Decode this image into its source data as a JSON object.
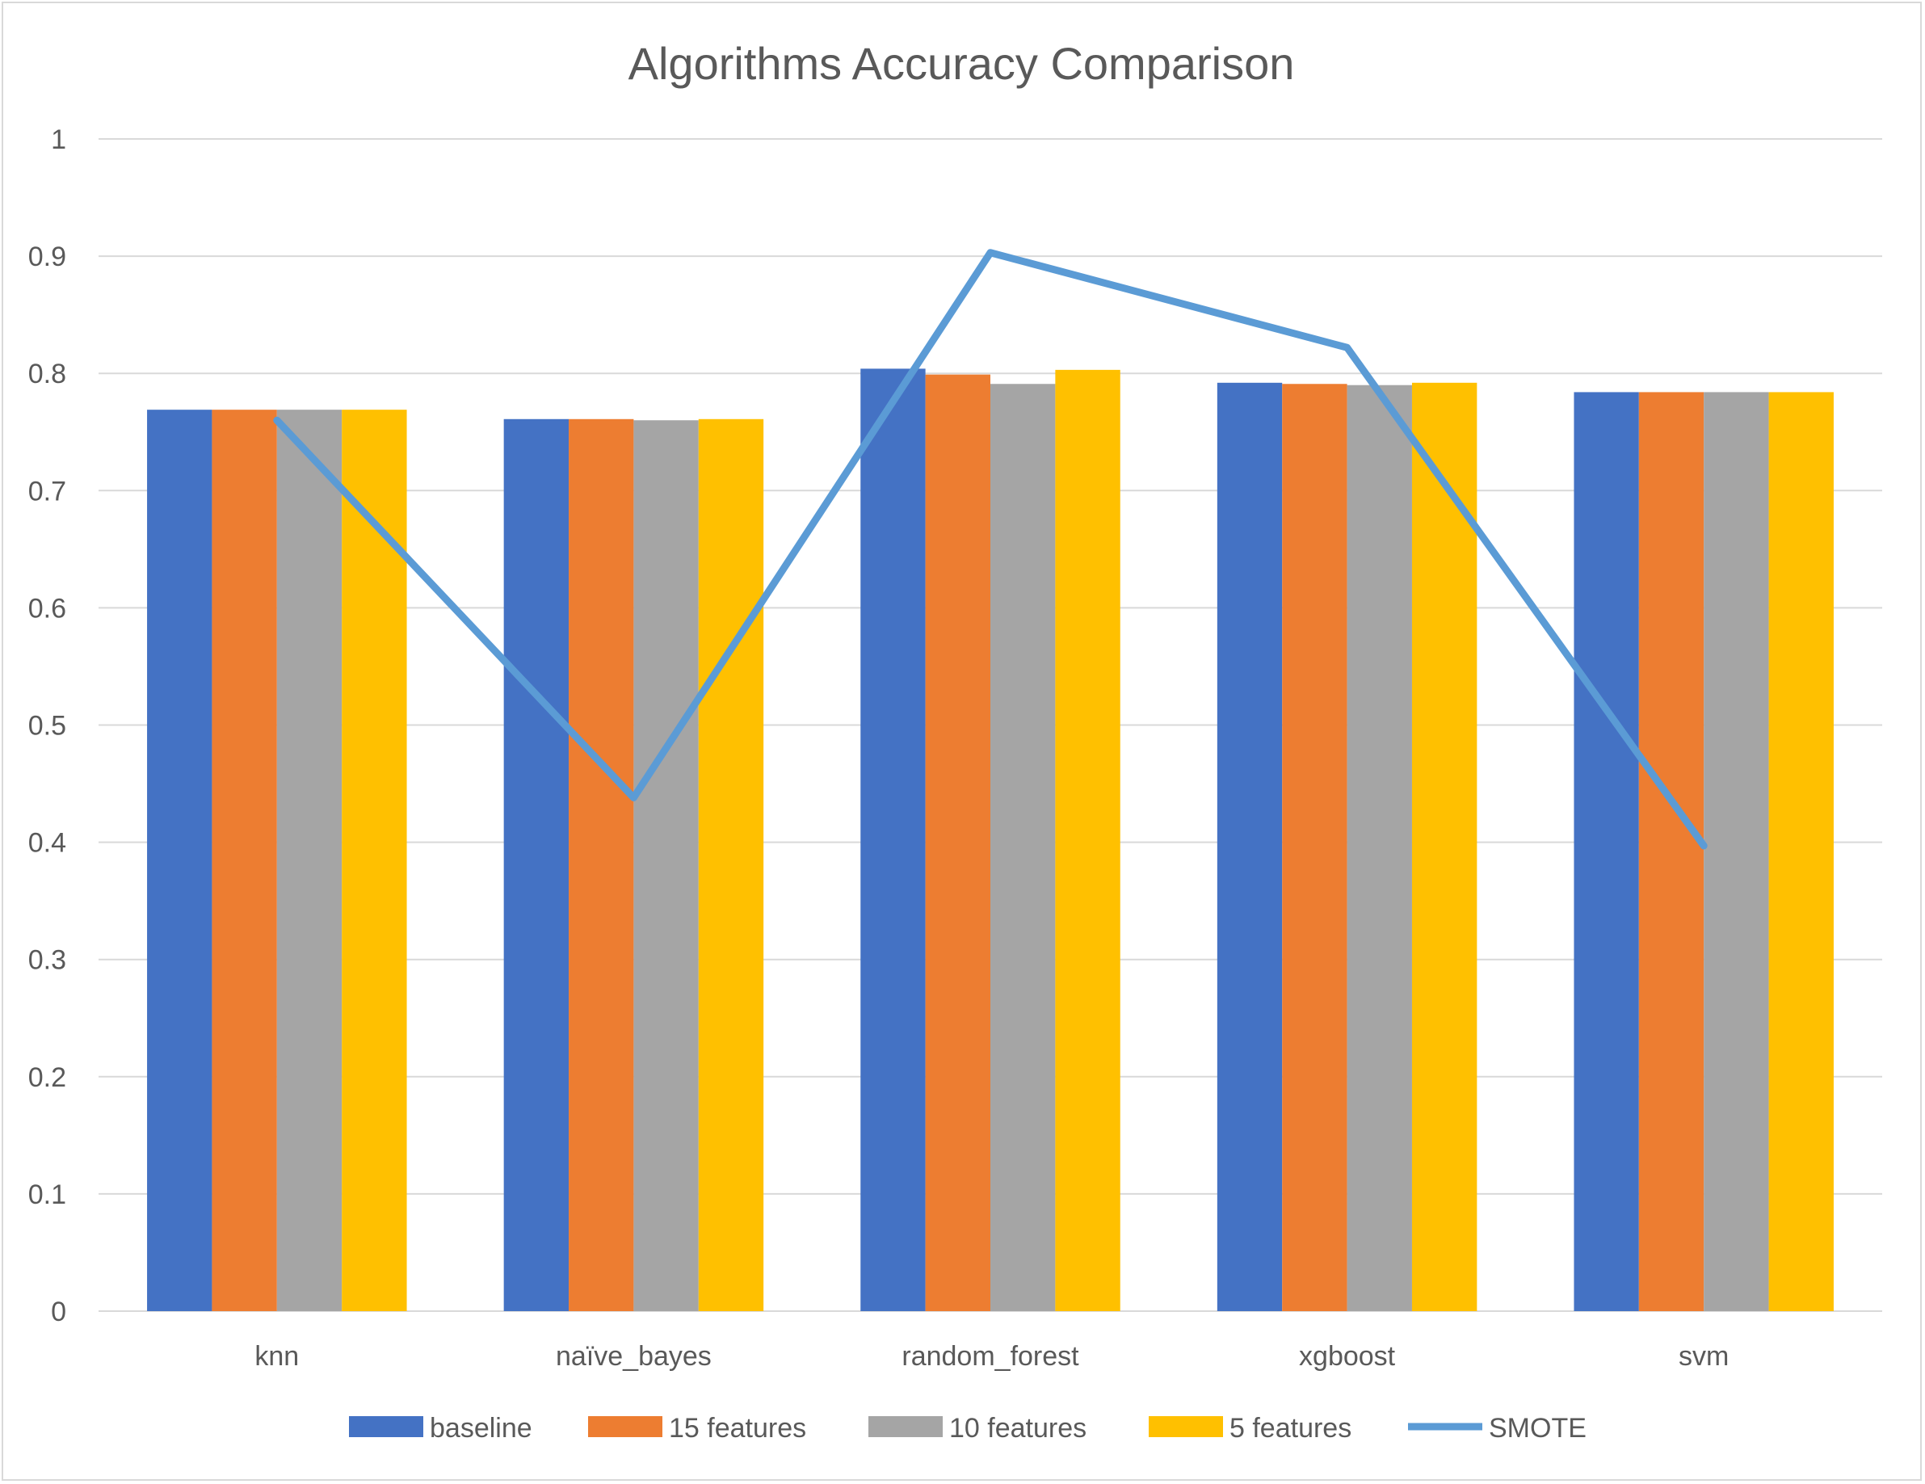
{
  "chart_data": {
    "type": "bar",
    "title": "Algorithms Accuracy Comparison",
    "xlabel": "",
    "ylabel": "",
    "ylim": [
      0,
      1
    ],
    "yticks": [
      "0",
      "0.1",
      "0.2",
      "0.3",
      "0.4",
      "0.5",
      "0.6",
      "0.7",
      "0.8",
      "0.9",
      "1"
    ],
    "grid": true,
    "legend_position": "bottom",
    "categories": [
      "knn",
      "naïve_bayes",
      "random_forest",
      "xgboost",
      "svm"
    ],
    "series": [
      {
        "name": "baseline",
        "kind": "bar",
        "color": "#4472C4",
        "values": [
          0.769,
          0.761,
          0.804,
          0.792,
          0.784
        ]
      },
      {
        "name": "15 features",
        "kind": "bar",
        "color": "#ED7D31",
        "values": [
          0.769,
          0.761,
          0.799,
          0.791,
          0.784
        ]
      },
      {
        "name": "10 features",
        "kind": "bar",
        "color": "#A5A5A5",
        "values": [
          0.769,
          0.76,
          0.791,
          0.79,
          0.784
        ]
      },
      {
        "name": "5 features",
        "kind": "bar",
        "color": "#FFC000",
        "values": [
          0.769,
          0.761,
          0.803,
          0.792,
          0.784
        ]
      },
      {
        "name": "SMOTE",
        "kind": "line",
        "color": "#5B9BD5",
        "values": [
          0.76,
          0.438,
          0.903,
          0.822,
          0.397
        ]
      }
    ]
  }
}
